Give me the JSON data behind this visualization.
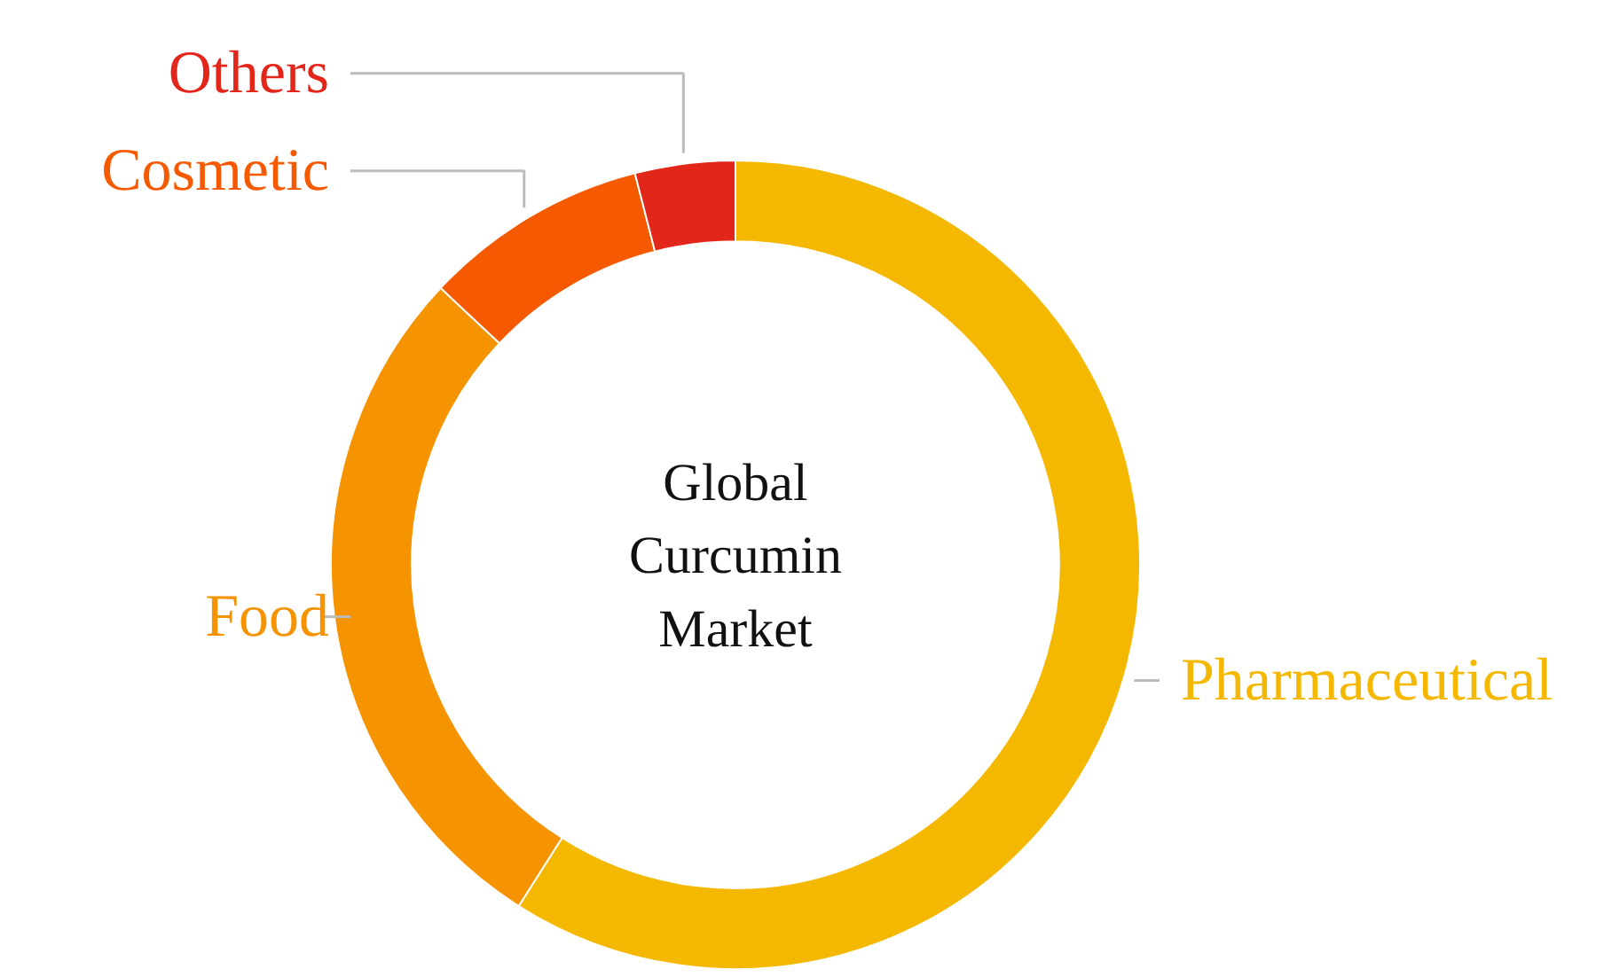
{
  "chart_data": {
    "type": "donut",
    "title": "Global\nCurcumin\nMarket",
    "categories": [
      "Pharmaceutical",
      "Food",
      "Cosmetic",
      "Others"
    ],
    "values": [
      59,
      28,
      9,
      4
    ],
    "colors": [
      "#f5b800",
      "#f59300",
      "#f55a00",
      "#e3261a"
    ]
  }
}
